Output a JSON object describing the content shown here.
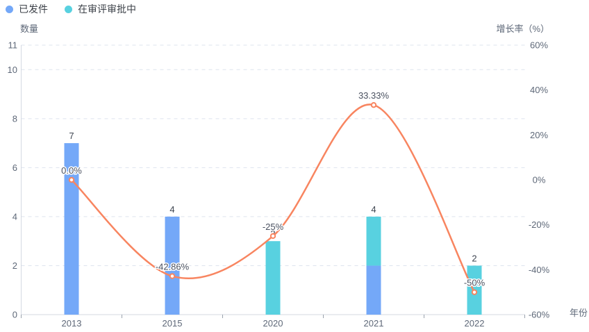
{
  "legend_position": "top-left",
  "chart_data": {
    "type": "combo-bar-line",
    "title": "",
    "categories": [
      "2013",
      "2015",
      "2020",
      "2021",
      "2022"
    ],
    "series": [
      {
        "name": "已发件",
        "type": "bar",
        "stack": true,
        "axis": "left",
        "color": "#74A8F8",
        "values": [
          7,
          4,
          0,
          2,
          0
        ]
      },
      {
        "name": "在审评审批中",
        "type": "bar",
        "stack": true,
        "axis": "left",
        "color": "#58D1E0",
        "values": [
          0,
          0,
          3,
          2,
          2
        ]
      },
      {
        "name": "增长率",
        "type": "line",
        "smooth": true,
        "axis": "right",
        "color": "#F88560",
        "values": [
          0,
          -42.86,
          -25,
          33.33,
          -50
        ],
        "point_labels": [
          "0.0%",
          "-42.86%",
          "-25%",
          "33.33%",
          "-50%"
        ]
      }
    ],
    "bar_total_labels": [
      "7",
      "4",
      "3",
      "4",
      "2"
    ],
    "left_axis": {
      "title": "数量",
      "min": 0,
      "max": 11,
      "tick_values": [
        0,
        2,
        4,
        6,
        8,
        10,
        11
      ]
    },
    "right_axis": {
      "title": "增长率（%）",
      "min": -60,
      "max": 60,
      "tick_values": [
        60,
        40,
        20,
        0,
        -20,
        -40,
        -60
      ],
      "tick_labels": [
        "60%",
        "40%",
        "20%",
        "0%",
        "-20%",
        "-40%",
        "-60%"
      ]
    },
    "x_axis": {
      "title": "年份"
    },
    "grid": {
      "horizontal_dashed": true
    },
    "colors": {
      "grid_line": "#dde3ee",
      "axis_line": "#d4d9e2",
      "tick_text": "#5e6878",
      "value_label": "#3d4450",
      "point_label": "#4a5160"
    }
  }
}
